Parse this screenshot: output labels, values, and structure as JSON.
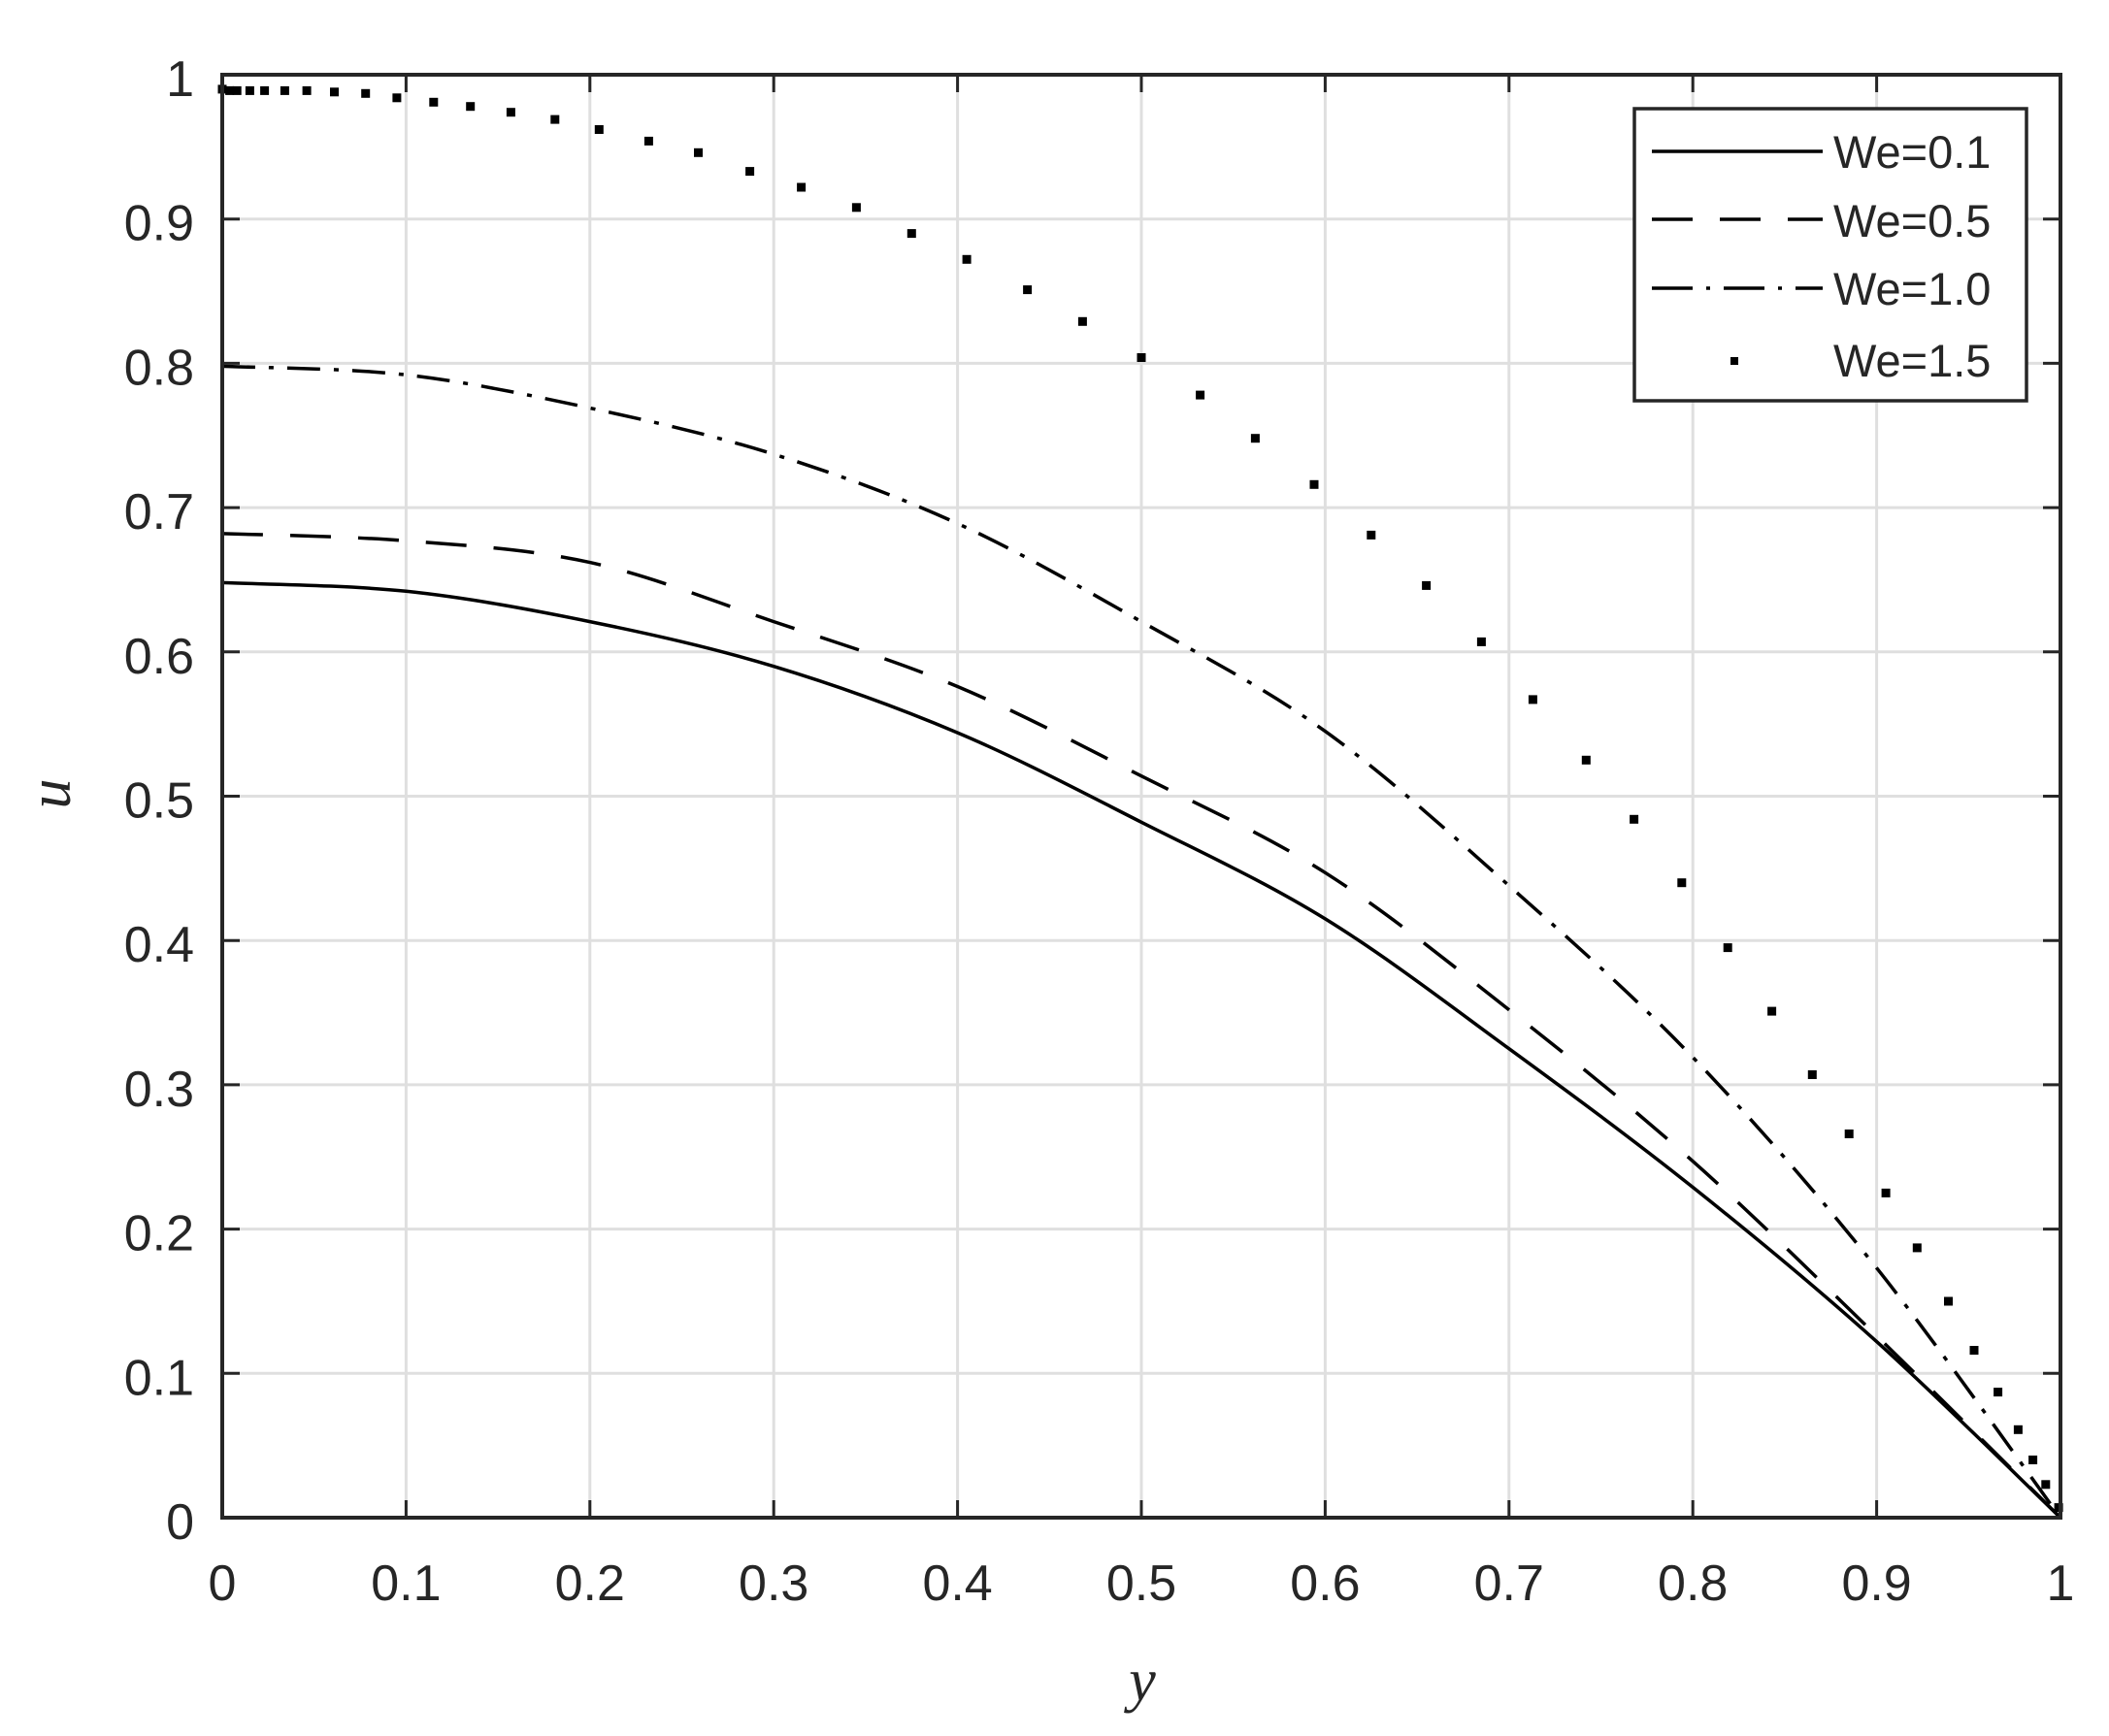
{
  "chart_data": {
    "type": "line",
    "title": "",
    "xlabel": "y",
    "ylabel": "u",
    "xlim": [
      0,
      1
    ],
    "ylim": [
      0,
      1
    ],
    "grid": true,
    "legend_position": "upper right",
    "x_ticks": [
      "0",
      "0.1",
      "0.2",
      "0.3",
      "0.4",
      "0.5",
      "0.6",
      "0.7",
      "0.8",
      "0.9",
      "1"
    ],
    "y_ticks": [
      "0",
      "0.1",
      "0.2",
      "0.3",
      "0.4",
      "0.5",
      "0.6",
      "0.7",
      "0.8",
      "0.9",
      "1"
    ],
    "series": [
      {
        "name": "We=0.1",
        "style": "solid",
        "x": [
          0,
          0.1,
          0.2,
          0.3,
          0.4,
          0.5,
          0.6,
          0.7,
          0.8,
          0.9,
          1.0
        ],
        "values": [
          0.648,
          0.642,
          0.621,
          0.59,
          0.544,
          0.482,
          0.415,
          0.325,
          0.229,
          0.122,
          0.0
        ]
      },
      {
        "name": "We=0.5",
        "style": "dashed",
        "x": [
          0,
          0.1,
          0.2,
          0.3,
          0.4,
          0.5,
          0.6,
          0.7,
          0.8,
          0.9,
          1.0
        ],
        "values": [
          0.682,
          0.677,
          0.662,
          0.621,
          0.576,
          0.514,
          0.447,
          0.352,
          0.247,
          0.126,
          0.0
        ]
      },
      {
        "name": "We=1.0",
        "style": "dashdot",
        "x": [
          0,
          0.1,
          0.2,
          0.3,
          0.4,
          0.5,
          0.6,
          0.7,
          0.8,
          0.9,
          1.0
        ],
        "values": [
          0.798,
          0.792,
          0.769,
          0.737,
          0.689,
          0.621,
          0.545,
          0.438,
          0.319,
          0.173,
          0.0
        ]
      },
      {
        "name": "We=1.5",
        "style": "dotted",
        "x": [
          0,
          0.004,
          0.008,
          0.015,
          0.023,
          0.034,
          0.046,
          0.061,
          0.078,
          0.095,
          0.115,
          0.135,
          0.157,
          0.181,
          0.205,
          0.232,
          0.259,
          0.287,
          0.315,
          0.345,
          0.375,
          0.405,
          0.438,
          0.468,
          0.5,
          0.532,
          0.562,
          0.594,
          0.625,
          0.655,
          0.685,
          0.713,
          0.742,
          0.768,
          0.794,
          0.819,
          0.843,
          0.865,
          0.885,
          0.905,
          0.922,
          0.939,
          0.953,
          0.966,
          0.977,
          0.985,
          0.992,
          0.999
        ],
        "values": [
          0.99,
          0.989,
          0.989,
          0.989,
          0.989,
          0.989,
          0.989,
          0.988,
          0.987,
          0.984,
          0.981,
          0.978,
          0.974,
          0.969,
          0.962,
          0.954,
          0.946,
          0.933,
          0.922,
          0.908,
          0.89,
          0.872,
          0.851,
          0.829,
          0.804,
          0.778,
          0.748,
          0.716,
          0.681,
          0.646,
          0.607,
          0.567,
          0.525,
          0.484,
          0.44,
          0.395,
          0.351,
          0.307,
          0.266,
          0.225,
          0.187,
          0.15,
          0.116,
          0.087,
          0.061,
          0.04,
          0.023,
          0.007
        ]
      }
    ]
  },
  "legend": {
    "items": [
      {
        "label": "We=0.1",
        "style": "solid"
      },
      {
        "label": "We=0.5",
        "style": "dashed"
      },
      {
        "label": "We=1.0",
        "style": "dashdot"
      },
      {
        "label": "We=1.5",
        "style": "dotted"
      }
    ]
  },
  "axes": {
    "xlabel": "y",
    "ylabel": "u"
  }
}
